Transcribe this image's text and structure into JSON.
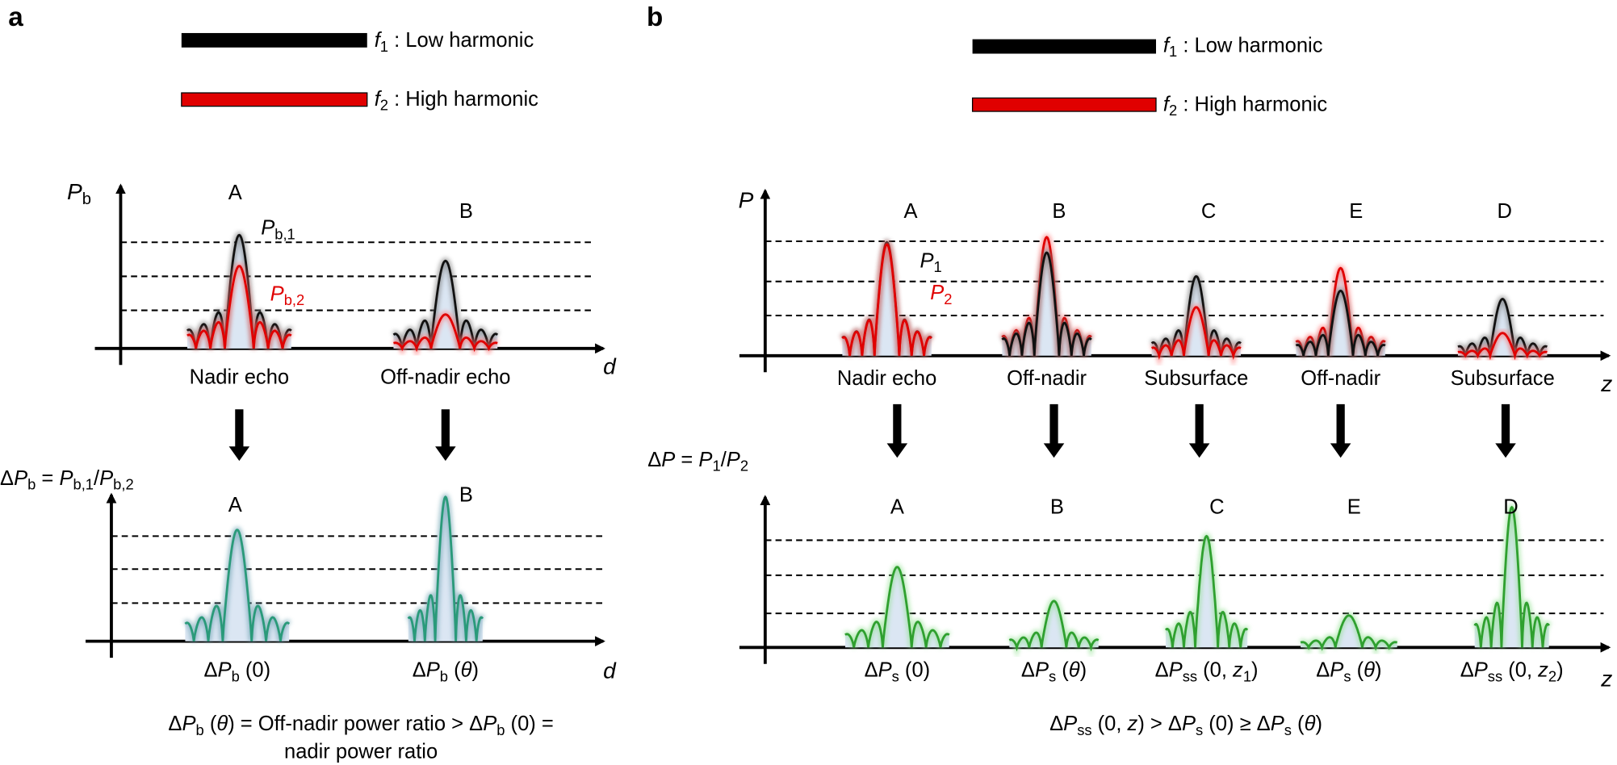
{
  "panel_a": {
    "label": "a",
    "legend": [
      [
        {
          "i": "f"
        },
        {
          "sub": "1"
        },
        " : Low harmonic"
      ],
      [
        {
          "i": "f"
        },
        {
          "sub": "2"
        },
        " : High harmonic"
      ]
    ],
    "y_label": [
      {
        "i": "P"
      },
      {
        "sub": "b"
      }
    ],
    "x_label": "d",
    "peaks": [
      {
        "label": "A",
        "caption": "Nadir echo"
      },
      {
        "label": "B",
        "caption": "Off-nadir echo"
      }
    ],
    "annotations": [
      [
        {
          "i": "P"
        },
        {
          "sub": "b,1"
        }
      ],
      [
        {
          "i": "P"
        },
        {
          "sub": "b,2"
        }
      ]
    ],
    "formula": [
      "Δ",
      {
        "i": "P"
      },
      {
        "sub": "b"
      },
      " = ",
      {
        "i": "P"
      },
      {
        "sub": "b,1"
      },
      "/",
      {
        "i": "P"
      },
      {
        "sub": "b,2"
      }
    ],
    "bottom_peaks": [
      {
        "label": "A",
        "caption": [
          "Δ",
          {
            "i": "P"
          },
          {
            "sub": "b"
          },
          " (0)"
        ]
      },
      {
        "label": "B",
        "caption": [
          "Δ",
          {
            "i": "P"
          },
          {
            "sub": "b"
          },
          " (",
          {
            "i": "θ"
          },
          ")"
        ]
      }
    ],
    "bottom_x_label": "d",
    "conclusion": [
      [
        "Δ",
        {
          "i": "P"
        },
        {
          "sub": "b"
        },
        " (",
        {
          "i": "θ"
        },
        ") = Off-nadir power ratio > Δ",
        {
          "i": "P"
        },
        {
          "sub": "b"
        },
        " (0) ="
      ],
      [
        "nadir power ratio"
      ]
    ]
  },
  "panel_b": {
    "label": "b",
    "legend": [
      [
        {
          "i": "f"
        },
        {
          "sub": "1"
        },
        " : Low harmonic"
      ],
      [
        {
          "i": "f"
        },
        {
          "sub": "2"
        },
        " : High harmonic"
      ]
    ],
    "y_label": [
      {
        "i": "P"
      }
    ],
    "x_label": "z",
    "peaks": [
      {
        "label": "A",
        "caption": "Nadir echo"
      },
      {
        "label": "B",
        "caption": "Off-nadir"
      },
      {
        "label": "C",
        "caption": "Subsurface"
      },
      {
        "label": "E",
        "caption": "Off-nadir"
      },
      {
        "label": "D",
        "caption": "Subsurface"
      }
    ],
    "annotations": [
      [
        {
          "i": "P"
        },
        {
          "sub": "1"
        }
      ],
      [
        {
          "i": "P"
        },
        {
          "sub": "2"
        }
      ]
    ],
    "formula": [
      "Δ",
      {
        "i": "P"
      },
      " = ",
      {
        "i": "P"
      },
      {
        "sub": "1"
      },
      "/",
      {
        "i": "P"
      },
      {
        "sub": "2"
      }
    ],
    "bottom_peaks": [
      {
        "label": "A",
        "caption": [
          "Δ",
          {
            "i": "P"
          },
          {
            "sub": "s"
          },
          " (0)"
        ]
      },
      {
        "label": "B",
        "caption": [
          "Δ",
          {
            "i": "P"
          },
          {
            "sub": "s"
          },
          " (",
          {
            "i": "θ"
          },
          ")"
        ]
      },
      {
        "label": "C",
        "caption": [
          "Δ",
          {
            "i": "P"
          },
          {
            "sub": "ss"
          },
          " (0, ",
          {
            "i": "z"
          },
          {
            "sub": "1"
          },
          ")"
        ]
      },
      {
        "label": "E",
        "caption": [
          "Δ",
          {
            "i": "P"
          },
          {
            "sub": "s"
          },
          " (",
          {
            "i": "θ"
          },
          ")"
        ]
      },
      {
        "label": "D",
        "caption": [
          "Δ",
          {
            "i": "P"
          },
          {
            "sub": "ss"
          },
          " (0, ",
          {
            "i": "z"
          },
          {
            "sub": "2"
          },
          ")"
        ]
      }
    ],
    "bottom_x_label": "z",
    "conclusion": [
      [
        "Δ",
        {
          "i": "P"
        },
        {
          "sub": "ss"
        },
        " (0, ",
        {
          "i": "z"
        },
        ") > Δ",
        {
          "i": "P"
        },
        {
          "sub": "s"
        },
        " (0) ≥ Δ",
        {
          "i": "P"
        },
        {
          "sub": "s"
        },
        " (",
        {
          "i": "θ"
        },
        ")"
      ]
    ]
  }
}
